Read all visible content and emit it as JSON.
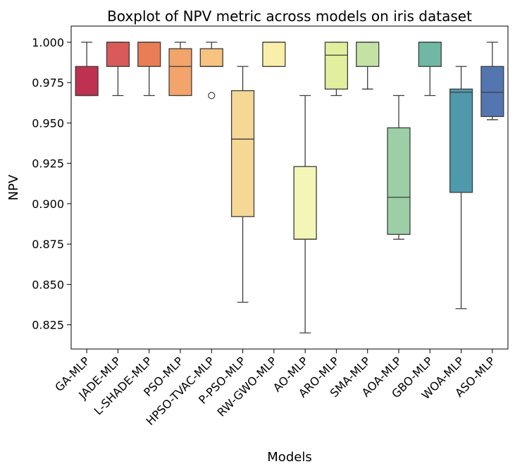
{
  "chart_data": {
    "type": "boxplot",
    "title": "Boxplot of NPV metric across models on iris dataset",
    "xlabel": "Models",
    "ylabel": "NPV",
    "ylim": [
      0.81,
      1.01
    ],
    "yticks": [
      0.825,
      0.85,
      0.875,
      0.9,
      0.925,
      0.95,
      0.975,
      1.0
    ],
    "ytick_labels": [
      "0.825",
      "0.850",
      "0.875",
      "0.900",
      "0.925",
      "0.950",
      "0.975",
      "1.000"
    ],
    "grid": false,
    "categories": [
      "GA-MLP",
      "JADE-MLP",
      "L-SHADE-MLP",
      "PSO-MLP",
      "HPSO-TVAC-MLP",
      "P-PSO-MLP",
      "RW-GWO-MLP",
      "AO-MLP",
      "ARO-MLP",
      "SMA-MLP",
      "AOA-MLP",
      "GBO-MLP",
      "WOA-MLP",
      "ASO-MLP"
    ],
    "boxes": [
      {
        "whislo": 0.967,
        "q1": 0.967,
        "med": 0.967,
        "q3": 0.985,
        "whishi": 1.0,
        "fliers": [],
        "color": "#be3150"
      },
      {
        "whislo": 0.967,
        "q1": 0.985,
        "med": 1.0,
        "q3": 1.0,
        "whishi": 1.0,
        "fliers": [],
        "color": "#d95a59"
      },
      {
        "whislo": 0.967,
        "q1": 0.985,
        "med": 1.0,
        "q3": 1.0,
        "whishi": 1.0,
        "fliers": [],
        "color": "#e97d56"
      },
      {
        "whislo": 0.967,
        "q1": 0.967,
        "med": 0.985,
        "q3": 0.996,
        "whishi": 1.0,
        "fliers": [],
        "color": "#f2a46b"
      },
      {
        "whislo": 0.985,
        "q1": 0.985,
        "med": 0.985,
        "q3": 0.996,
        "whishi": 1.0,
        "fliers": [
          0.967
        ],
        "color": "#f6c380"
      },
      {
        "whislo": 0.839,
        "q1": 0.892,
        "med": 0.94,
        "q3": 0.97,
        "whishi": 0.985,
        "fliers": [],
        "color": "#f5d895"
      },
      {
        "whislo": 0.985,
        "q1": 0.985,
        "med": 1.0,
        "q3": 1.0,
        "whishi": 1.0,
        "fliers": [],
        "color": "#f9efaa"
      },
      {
        "whislo": 0.82,
        "q1": 0.878,
        "med": 0.878,
        "q3": 0.923,
        "whishi": 0.967,
        "fliers": [],
        "color": "#f3f6b6"
      },
      {
        "whislo": 0.967,
        "q1": 0.971,
        "med": 0.992,
        "q3": 1.0,
        "whishi": 1.0,
        "fliers": [],
        "color": "#e1ef9e"
      },
      {
        "whislo": 0.971,
        "q1": 0.985,
        "med": 1.0,
        "q3": 1.0,
        "whishi": 1.0,
        "fliers": [],
        "color": "#c3e3a4"
      },
      {
        "whislo": 0.878,
        "q1": 0.881,
        "med": 0.904,
        "q3": 0.947,
        "whishi": 0.967,
        "fliers": [],
        "color": "#9ccfa6"
      },
      {
        "whislo": 0.967,
        "q1": 0.985,
        "med": 1.0,
        "q3": 1.0,
        "whishi": 1.0,
        "fliers": [],
        "color": "#70b8a3"
      },
      {
        "whislo": 0.835,
        "q1": 0.907,
        "med": 0.969,
        "q3": 0.971,
        "whishi": 0.985,
        "fliers": [],
        "color": "#4f99ac"
      },
      {
        "whislo": 0.952,
        "q1": 0.954,
        "med": 0.969,
        "q3": 0.985,
        "whishi": 1.0,
        "fliers": [],
        "color": "#5376b0"
      }
    ]
  }
}
